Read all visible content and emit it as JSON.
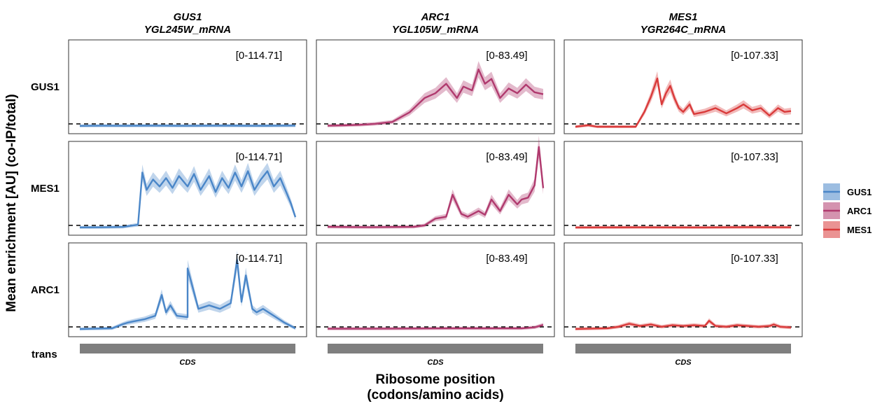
{
  "chart_data": {
    "type": "line",
    "ylabel": "Mean enrichment [AU] (co-IP/total)",
    "xlabel_lines": [
      "Ribosome position",
      "(codons/amino acids)"
    ],
    "columns": [
      {
        "gene": "GUS1",
        "transcript": "YGL245W_mRNA",
        "range_label": "[0-114.71]",
        "ymax": 114.71
      },
      {
        "gene": "ARC1",
        "transcript": "YGL105W_mRNA",
        "range_label": "[0-83.49]",
        "ymax": 83.49
      },
      {
        "gene": "MES1",
        "transcript": "YGR264C_mRNA",
        "range_label": "[0-107.33]",
        "ymax": 107.33
      }
    ],
    "rows": [
      "GUS1",
      "MES1",
      "ARC1"
    ],
    "track": {
      "label": "trans",
      "feature": "CDS"
    },
    "series": [
      {
        "name": "GUS1",
        "color": "#4a86c8"
      },
      {
        "name": "ARC1",
        "color": "#b03a6e"
      },
      {
        "name": "MES1",
        "color": "#d93a3a"
      }
    ],
    "panels": [
      {
        "row": "GUS1",
        "col": "GUS1",
        "series": "GUS1",
        "x": [
          0,
          0.1,
          0.2,
          0.3,
          0.4,
          0.5,
          0.6,
          0.7,
          0.8,
          0.9,
          1.0
        ],
        "y": [
          1.2,
          1.4,
          1.3,
          1.5,
          1.4,
          1.3,
          1.4,
          1.5,
          1.3,
          1.4,
          1.6
        ]
      },
      {
        "row": "GUS1",
        "col": "ARC1",
        "series": "ARC1",
        "x": [
          0,
          0.08,
          0.15,
          0.22,
          0.3,
          0.38,
          0.45,
          0.5,
          0.55,
          0.6,
          0.63,
          0.67,
          0.7,
          0.73,
          0.76,
          0.8,
          0.84,
          0.88,
          0.92,
          0.96,
          1.0
        ],
        "y": [
          1.0,
          1.5,
          2.0,
          3.0,
          5.0,
          15.0,
          30.0,
          35.0,
          45.0,
          30.0,
          42.0,
          38.0,
          60.0,
          45.0,
          50.0,
          30.0,
          40.0,
          35.0,
          44.0,
          36.0,
          34.0
        ]
      },
      {
        "row": "GUS1",
        "col": "MES1",
        "series": "MES1",
        "x": [
          0,
          0.06,
          0.1,
          0.2,
          0.28,
          0.32,
          0.35,
          0.38,
          0.4,
          0.42,
          0.44,
          0.46,
          0.48,
          0.5,
          0.53,
          0.55,
          0.6,
          0.65,
          0.7,
          0.75,
          0.78,
          0.82,
          0.86,
          0.9,
          0.94,
          0.97,
          1.0
        ],
        "y": [
          0,
          2.0,
          0,
          0,
          0,
          20.0,
          40.0,
          65.0,
          30.0,
          45.0,
          55.0,
          38.0,
          25.0,
          20.0,
          30.0,
          17.0,
          20.0,
          25.0,
          18.0,
          25.0,
          30.0,
          22.0,
          25.0,
          15.0,
          25.0,
          20.0,
          21.0
        ]
      },
      {
        "row": "MES1",
        "col": "GUS1",
        "series": "GUS1",
        "x": [
          0,
          0.1,
          0.2,
          0.27,
          0.29,
          0.31,
          0.34,
          0.37,
          0.4,
          0.43,
          0.46,
          0.5,
          0.53,
          0.56,
          0.6,
          0.63,
          0.66,
          0.69,
          0.72,
          0.75,
          0.78,
          0.81,
          0.84,
          0.87,
          0.9,
          0.93,
          0.96,
          0.98,
          1.0
        ],
        "y": [
          1.2,
          1.3,
          1.8,
          5.0,
          80.0,
          55.0,
          70.0,
          60.0,
          72.0,
          58.0,
          75.0,
          60.0,
          78.0,
          55.0,
          75.0,
          52.0,
          72.0,
          58.0,
          80.0,
          60.0,
          82.0,
          55.0,
          70.0,
          82.0,
          60.0,
          72.0,
          50.0,
          35.0,
          16.0
        ]
      },
      {
        "row": "MES1",
        "col": "ARC1",
        "series": "ARC1",
        "x": [
          0,
          0.2,
          0.4,
          0.45,
          0.5,
          0.55,
          0.58,
          0.62,
          0.65,
          0.7,
          0.73,
          0.76,
          0.8,
          0.84,
          0.88,
          0.9,
          0.93,
          0.96,
          0.98,
          1.0
        ],
        "y": [
          1.5,
          1.0,
          1.5,
          3.0,
          10.0,
          12.0,
          35.0,
          15.0,
          12.0,
          18.0,
          14.0,
          30.0,
          18.0,
          35.0,
          25.0,
          30.0,
          32.0,
          45.0,
          85.0,
          42.0
        ]
      },
      {
        "row": "MES1",
        "col": "MES1",
        "series": "MES1",
        "x": [
          0,
          0.3,
          0.6,
          0.8,
          1.0
        ],
        "y": [
          1.0,
          1.2,
          1.0,
          1.4,
          1.2
        ]
      },
      {
        "row": "ARC1",
        "col": "GUS1",
        "series": "GUS1",
        "x": [
          0,
          0.15,
          0.2,
          0.22,
          0.25,
          0.3,
          0.35,
          0.38,
          0.4,
          0.42,
          0.45,
          0.5,
          0.5,
          0.55,
          0.6,
          0.65,
          0.7,
          0.73,
          0.75,
          0.77,
          0.8,
          0.82,
          0.85,
          0.9,
          0.95,
          1.0
        ],
        "y": [
          1.0,
          2.0,
          8.0,
          10.0,
          12.0,
          15.0,
          20.0,
          50.0,
          25.0,
          35.0,
          20.0,
          18.0,
          88.0,
          30.0,
          35.0,
          30.0,
          38.0,
          100.0,
          40.0,
          78.0,
          30.0,
          25.0,
          30.0,
          20.0,
          10.0,
          2.0
        ]
      },
      {
        "row": "ARC1",
        "col": "ARC1",
        "series": "ARC1",
        "x": [
          0,
          0.3,
          0.6,
          0.9,
          0.96,
          1.0
        ],
        "y": [
          1.0,
          1.2,
          1.5,
          1.4,
          2.5,
          5.0
        ]
      },
      {
        "row": "ARC1",
        "col": "MES1",
        "series": "MES1",
        "x": [
          0,
          0.15,
          0.2,
          0.25,
          0.3,
          0.35,
          0.4,
          0.45,
          0.5,
          0.55,
          0.6,
          0.62,
          0.65,
          0.7,
          0.75,
          0.8,
          0.85,
          0.9,
          0.92,
          0.95,
          1.0
        ],
        "y": [
          1.0,
          2.0,
          4.0,
          8.0,
          5.0,
          7.0,
          4.0,
          6.0,
          5.0,
          6.0,
          5.0,
          12.0,
          5.0,
          4.0,
          6.0,
          5.0,
          4.0,
          5.0,
          7.0,
          4.0,
          3.0
        ]
      }
    ]
  }
}
